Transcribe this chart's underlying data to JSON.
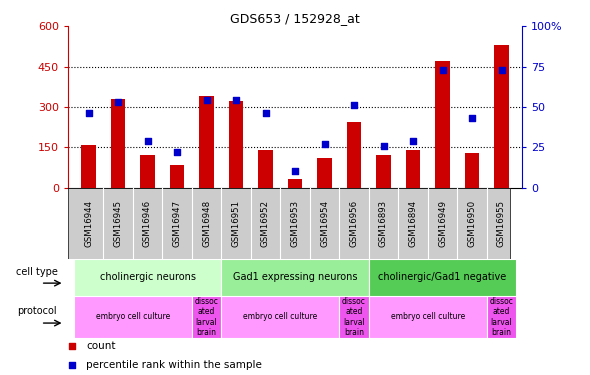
{
  "title": "GDS653 / 152928_at",
  "samples": [
    "GSM16944",
    "GSM16945",
    "GSM16946",
    "GSM16947",
    "GSM16948",
    "GSM16951",
    "GSM16952",
    "GSM16953",
    "GSM16954",
    "GSM16956",
    "GSM16893",
    "GSM16894",
    "GSM16949",
    "GSM16950",
    "GSM16955"
  ],
  "counts": [
    160,
    330,
    120,
    85,
    340,
    320,
    140,
    30,
    110,
    245,
    120,
    140,
    470,
    130,
    530
  ],
  "percentiles": [
    46,
    53,
    29,
    22,
    54,
    54,
    46,
    10,
    27,
    51,
    26,
    29,
    73,
    43,
    73
  ],
  "ylim_left": [
    0,
    600
  ],
  "ylim_right": [
    0,
    100
  ],
  "yticks_left": [
    0,
    150,
    300,
    450,
    600
  ],
  "yticks_right": [
    0,
    25,
    50,
    75,
    100
  ],
  "cell_type_groups": [
    {
      "label": "cholinergic neurons",
      "start": 0,
      "end": 5,
      "color": "#ccffcc"
    },
    {
      "label": "Gad1 expressing neurons",
      "start": 5,
      "end": 10,
      "color": "#99ee99"
    },
    {
      "label": "cholinergic/Gad1 negative",
      "start": 10,
      "end": 15,
      "color": "#55cc55"
    }
  ],
  "protocol_groups": [
    {
      "label": "embryo cell culture",
      "start": 0,
      "end": 4,
      "color": "#ff99ff"
    },
    {
      "label": "dissoc\nated\nlarval\nbrain",
      "start": 4,
      "end": 5,
      "color": "#ee55ee"
    },
    {
      "label": "embryo cell culture",
      "start": 5,
      "end": 9,
      "color": "#ff99ff"
    },
    {
      "label": "dissoc\nated\nlarval\nbrain",
      "start": 9,
      "end": 10,
      "color": "#ee55ee"
    },
    {
      "label": "embryo cell culture",
      "start": 10,
      "end": 14,
      "color": "#ff99ff"
    },
    {
      "label": "dissoc\nated\nlarval\nbrain",
      "start": 14,
      "end": 15,
      "color": "#ee55ee"
    }
  ],
  "bar_color": "#cc0000",
  "dot_color": "#0000cc",
  "tick_color_left": "#cc0000",
  "tick_color_right": "#0000cc",
  "legend_bar_color": "#cc0000",
  "legend_dot_color": "#0000cc",
  "grid_color": "black",
  "grid_linestyle": "dotted",
  "grid_linewidth": 0.8,
  "grid_yticks": [
    150,
    300,
    450
  ],
  "bar_width": 0.5,
  "sample_box_color": "#cccccc",
  "sample_box_edge": "#aaaaaa"
}
